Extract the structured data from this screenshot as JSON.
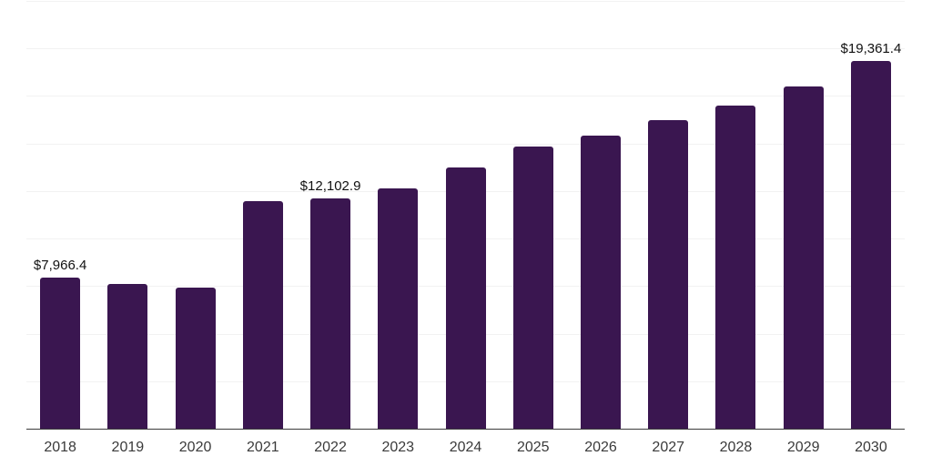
{
  "chart_data": {
    "type": "bar",
    "title": "",
    "xlabel": "",
    "ylabel": "",
    "categories": [
      "2018",
      "2019",
      "2020",
      "2021",
      "2022",
      "2023",
      "2024",
      "2025",
      "2026",
      "2027",
      "2028",
      "2029",
      "2030"
    ],
    "values": [
      7966.4,
      7610,
      7420,
      11990,
      12102.9,
      12650,
      13730,
      14860,
      15400,
      16230,
      17000,
      18000,
      19361.4
    ],
    "data_labels": [
      "$7,966.4",
      null,
      null,
      null,
      "$12,102.9",
      null,
      null,
      null,
      null,
      null,
      null,
      null,
      "$19,361.4"
    ],
    "labeled_values_exact": [
      {
        "category": "2018",
        "value": 7966.4,
        "label": "$7,966.4"
      },
      {
        "category": "2022",
        "value": 12102.9,
        "label": "$12,102.9"
      },
      {
        "category": "2030",
        "value": 19361.4,
        "label": "$19,361.4"
      }
    ],
    "ylim": [
      0,
      22500
    ],
    "grid_step": 2500,
    "grid": "horizontal-only",
    "y_axis_tick_labels_visible": false,
    "legend": "none",
    "colors": {
      "bar": "#3a1650",
      "gridline": "#f2f2f2",
      "axis_line": "#3c3c3c",
      "x_tick_label": "#3a3a3a",
      "data_label": "#111111",
      "background": "#ffffff"
    }
  }
}
